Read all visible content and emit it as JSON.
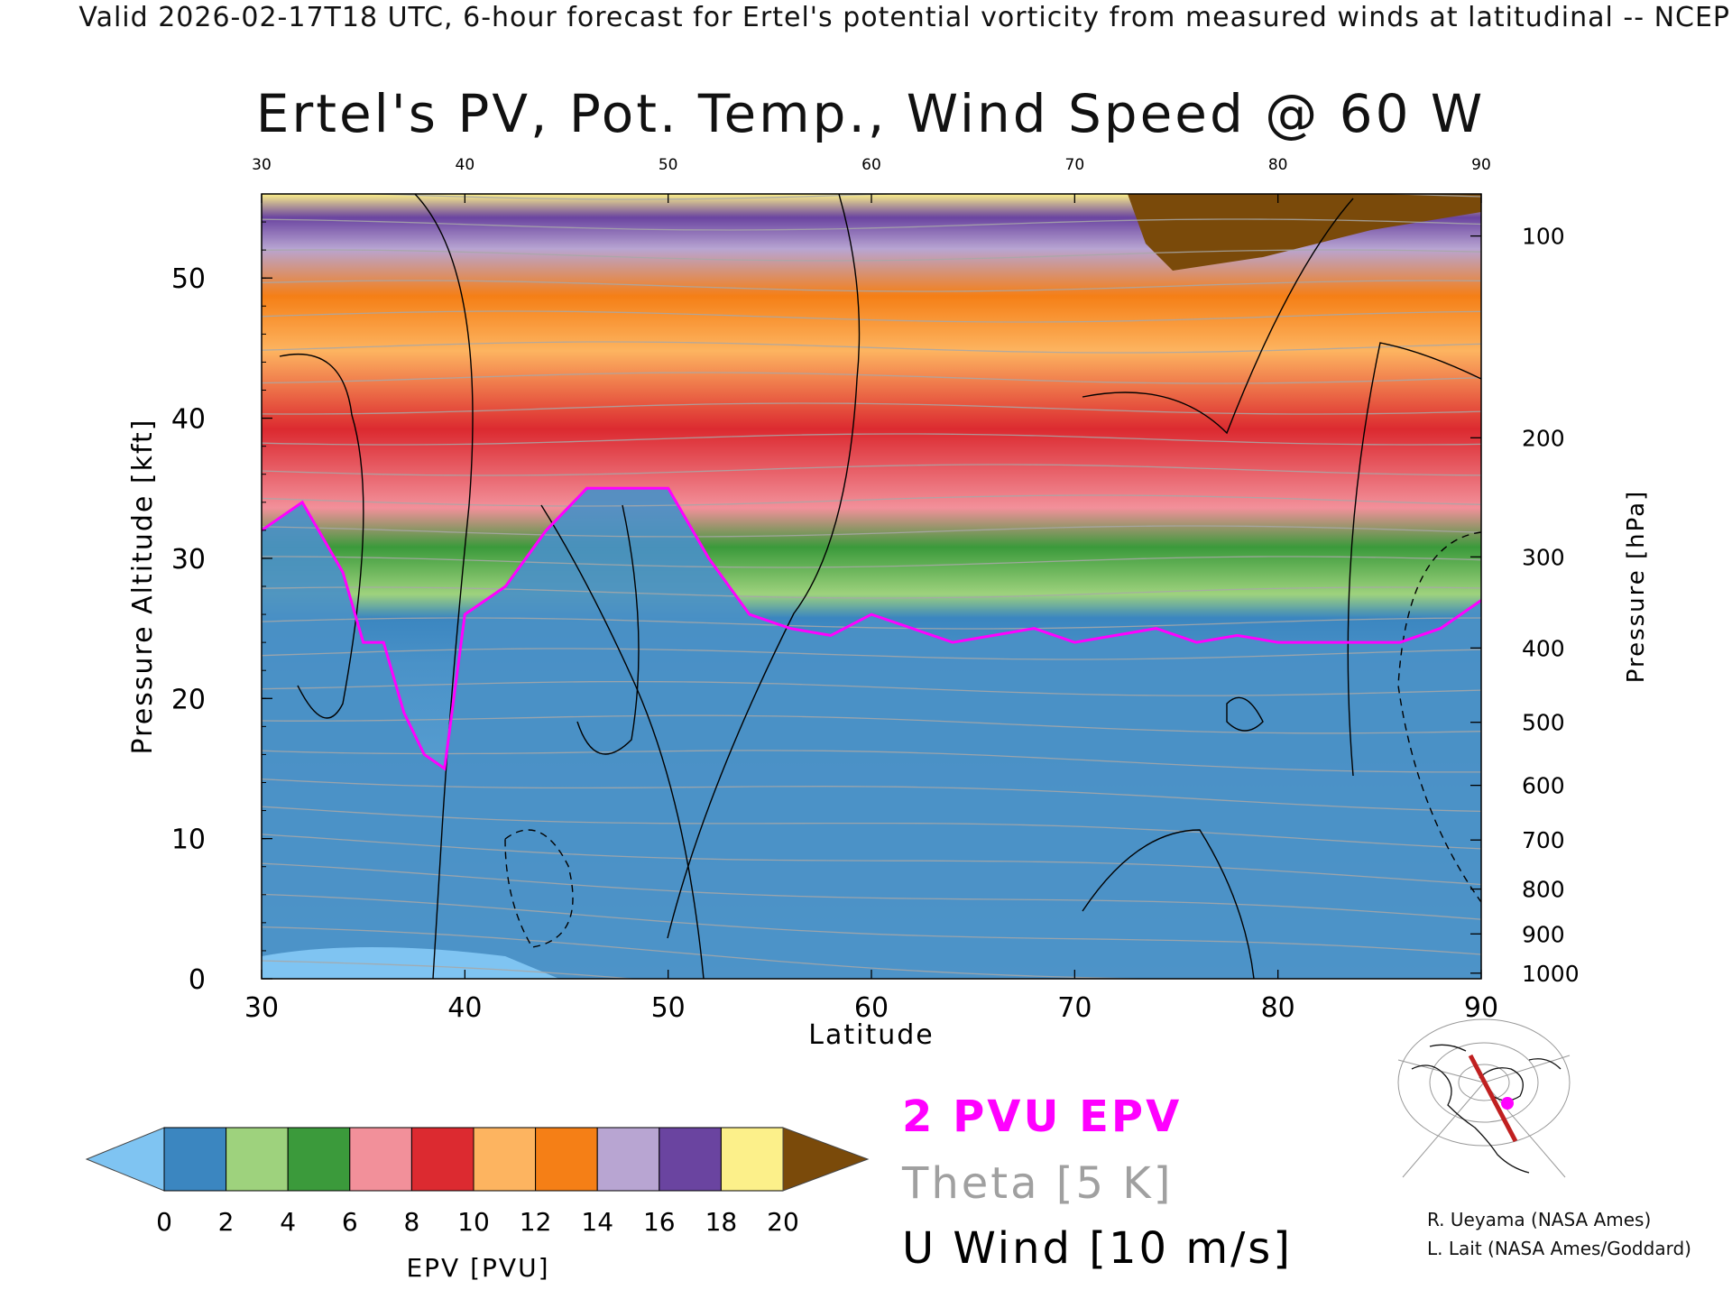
{
  "header": "Valid 2026-02-17T18 UTC, 6-hour forecast for Ertel's potential vorticity from measured winds at latitudinal -- NCEP",
  "title": "Ertel's PV, Pot. Temp., Wind Speed @ 60 W",
  "chart_data": {
    "type": "heatmap",
    "xlabel": "Latitude",
    "ylabel": "Pressure Altitude [kft]",
    "y2label": "Pressure [hPa]",
    "xlim": [
      30,
      90
    ],
    "ylim": [
      0,
      56
    ],
    "x_ticks": [
      "30",
      "40",
      "50",
      "60",
      "70",
      "80",
      "90"
    ],
    "y_ticks": [
      "0",
      "10",
      "20",
      "30",
      "40",
      "50"
    ],
    "pressure_ticks": [
      {
        "label": "100",
        "kft": 53.0
      },
      {
        "label": "200",
        "kft": 38.6
      },
      {
        "label": "300",
        "kft": 30.1
      },
      {
        "label": "400",
        "kft": 23.6
      },
      {
        "label": "500",
        "kft": 18.3
      },
      {
        "label": "600",
        "kft": 13.8
      },
      {
        "label": "700",
        "kft": 9.9
      },
      {
        "label": "800",
        "kft": 6.4
      },
      {
        "label": "900",
        "kft": 3.2
      },
      {
        "label": "1000",
        "kft": 0.4
      }
    ],
    "colorbar": {
      "label": "EPV [PVU]",
      "ticks": [
        "0",
        "2",
        "4",
        "6",
        "8",
        "10",
        "12",
        "14",
        "16",
        "18",
        "20"
      ],
      "colors": [
        "#3b86c0",
        "#9ed27d",
        "#3b9a3b",
        "#f2909a",
        "#dc2a30",
        "#fdb460",
        "#f57f16",
        "#b8a5d2",
        "#6a44a0",
        "#fcf08a"
      ],
      "under_color": "#7fc4f2",
      "over_color": "#7a4a0a"
    },
    "tropopause_kft": [
      {
        "lat": 30,
        "kft": 32
      },
      {
        "lat": 32,
        "kft": 34
      },
      {
        "lat": 34,
        "kft": 29
      },
      {
        "lat": 35,
        "kft": 24
      },
      {
        "lat": 36,
        "kft": 24
      },
      {
        "lat": 37,
        "kft": 19
      },
      {
        "lat": 38,
        "kft": 16
      },
      {
        "lat": 39,
        "kft": 15
      },
      {
        "lat": 40,
        "kft": 26
      },
      {
        "lat": 42,
        "kft": 28
      },
      {
        "lat": 44,
        "kft": 32
      },
      {
        "lat": 46,
        "kft": 35
      },
      {
        "lat": 48,
        "kft": 35
      },
      {
        "lat": 50,
        "kft": 35
      },
      {
        "lat": 52,
        "kft": 30
      },
      {
        "lat": 54,
        "kft": 26
      },
      {
        "lat": 56,
        "kft": 25
      },
      {
        "lat": 58,
        "kft": 24.5
      },
      {
        "lat": 60,
        "kft": 26
      },
      {
        "lat": 62,
        "kft": 25
      },
      {
        "lat": 64,
        "kft": 24
      },
      {
        "lat": 66,
        "kft": 24.5
      },
      {
        "lat": 68,
        "kft": 25
      },
      {
        "lat": 70,
        "kft": 24
      },
      {
        "lat": 72,
        "kft": 24.5
      },
      {
        "lat": 74,
        "kft": 25
      },
      {
        "lat": 76,
        "kft": 24
      },
      {
        "lat": 78,
        "kft": 24.5
      },
      {
        "lat": 80,
        "kft": 24
      },
      {
        "lat": 82,
        "kft": 24
      },
      {
        "lat": 84,
        "kft": 24
      },
      {
        "lat": 86,
        "kft": 24
      },
      {
        "lat": 88,
        "kft": 25
      },
      {
        "lat": 90,
        "kft": 27
      }
    ]
  },
  "legend": {
    "epv": "2 PVU EPV",
    "theta": "Theta [5 K]",
    "uwind": "U Wind [10 m/s]",
    "epv_color": "#ff00ff",
    "theta_color": "#a0a0a0",
    "uwind_color": "#000000"
  },
  "credits": [
    "R. Ueyama (NASA Ames)",
    "L. Lait (NASA Ames/Goddard)"
  ]
}
